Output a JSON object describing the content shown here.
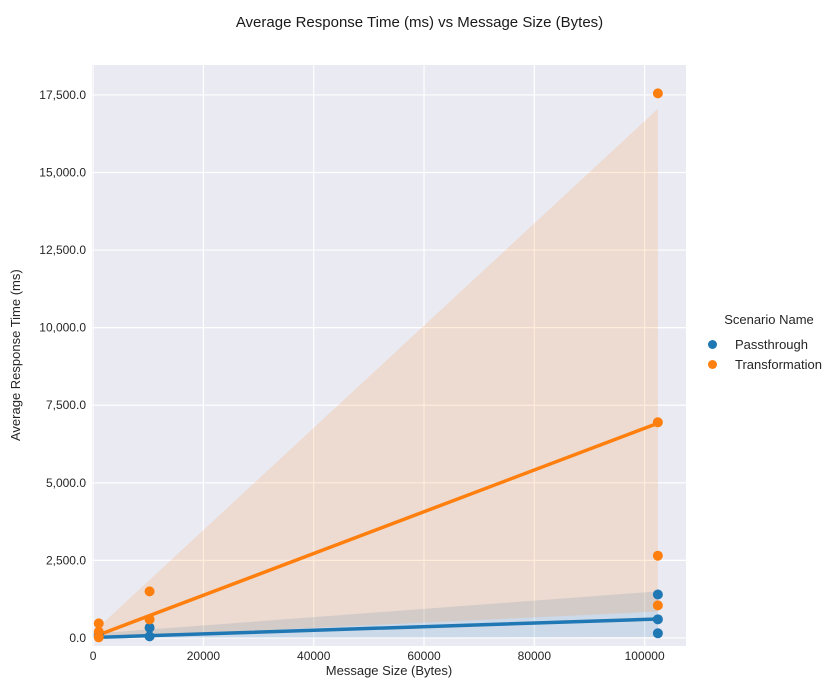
{
  "chart_data": {
    "type": "scatter",
    "title": "Average Response Time (ms) vs Message Size (Bytes)",
    "xlabel": "Message Size (Bytes)",
    "ylabel": "Average Response Time (ms)",
    "xlim": [
      -200,
      107500
    ],
    "ylim": [
      -260,
      18465
    ],
    "x_ticks": {
      "values": [
        0,
        20000,
        40000,
        60000,
        80000,
        100000
      ],
      "labels": [
        "0",
        "20000",
        "40000",
        "60000",
        "80000",
        "100000"
      ]
    },
    "y_ticks": {
      "values": [
        0,
        2500,
        5000,
        7500,
        10000,
        12500,
        15000,
        17500
      ],
      "labels": [
        "0.0",
        "2,500.0",
        "5,000.0",
        "7,500.0",
        "10,000.0",
        "12,500.0",
        "15,000.0",
        "17,500.0"
      ]
    },
    "grid": true,
    "plot_background_color": "#eaeaf2",
    "grid_color": "#ffffff",
    "legend_title": "Scenario Name",
    "legend_position": "right",
    "series": [
      {
        "name": "Passthrough",
        "color": "#1f77b4",
        "points": [
          [
            1024,
            60
          ],
          [
            1024,
            140
          ],
          [
            10240,
            330
          ],
          [
            10240,
            50
          ],
          [
            102400,
            1400
          ],
          [
            102400,
            600
          ],
          [
            102400,
            150
          ]
        ],
        "regression_line": [
          [
            1024,
            20
          ],
          [
            102400,
            610
          ]
        ],
        "confidence_band": [
          [
            1024,
            150
          ],
          [
            102400,
            1500
          ],
          [
            102400,
            30
          ],
          [
            1024,
            0
          ]
        ]
      },
      {
        "name": "Transformation",
        "color": "#ff7f0e",
        "points": [
          [
            1024,
            470
          ],
          [
            1024,
            200
          ],
          [
            1024,
            20
          ],
          [
            10240,
            1500
          ],
          [
            10240,
            600
          ],
          [
            102400,
            17550
          ],
          [
            102400,
            6950
          ],
          [
            102400,
            2650
          ],
          [
            102400,
            1050
          ]
        ],
        "regression_line": [
          [
            1024,
            100
          ],
          [
            102400,
            6920
          ]
        ],
        "confidence_band": [
          [
            1024,
            350
          ],
          [
            102400,
            17050
          ],
          [
            102400,
            850
          ],
          [
            1024,
            0
          ]
        ]
      }
    ]
  }
}
